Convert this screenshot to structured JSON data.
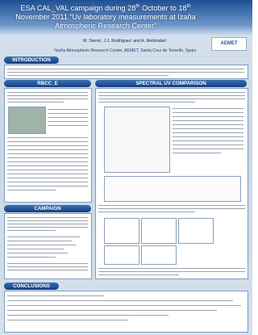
{
  "header": {
    "title_a": "ESA CAL_VAL campaign during 28",
    "title_sup_a": "th",
    "title_b": " October to 18",
    "title_sup_b": "th",
    "title_c": " November 2011 “Uv laboratory measurements at Izaña Atmospheric Research Center”",
    "authors": "M. Sierra¹, J.J. Rodríguez¹ and A. Redondas¹",
    "affiliation": "¹Izaña Atmospheric Research Center, AEMET, Santa Cruz de Tenerife, Spain",
    "logo": "AEMET"
  },
  "sections": {
    "introduction": "INTRODUCTION",
    "rbcc": "RBCC_E",
    "spectral": "SPECTRAL UV COMPARISON",
    "campaign": "CAMPAIGN",
    "conclusions": "CONCLUSIONS"
  }
}
